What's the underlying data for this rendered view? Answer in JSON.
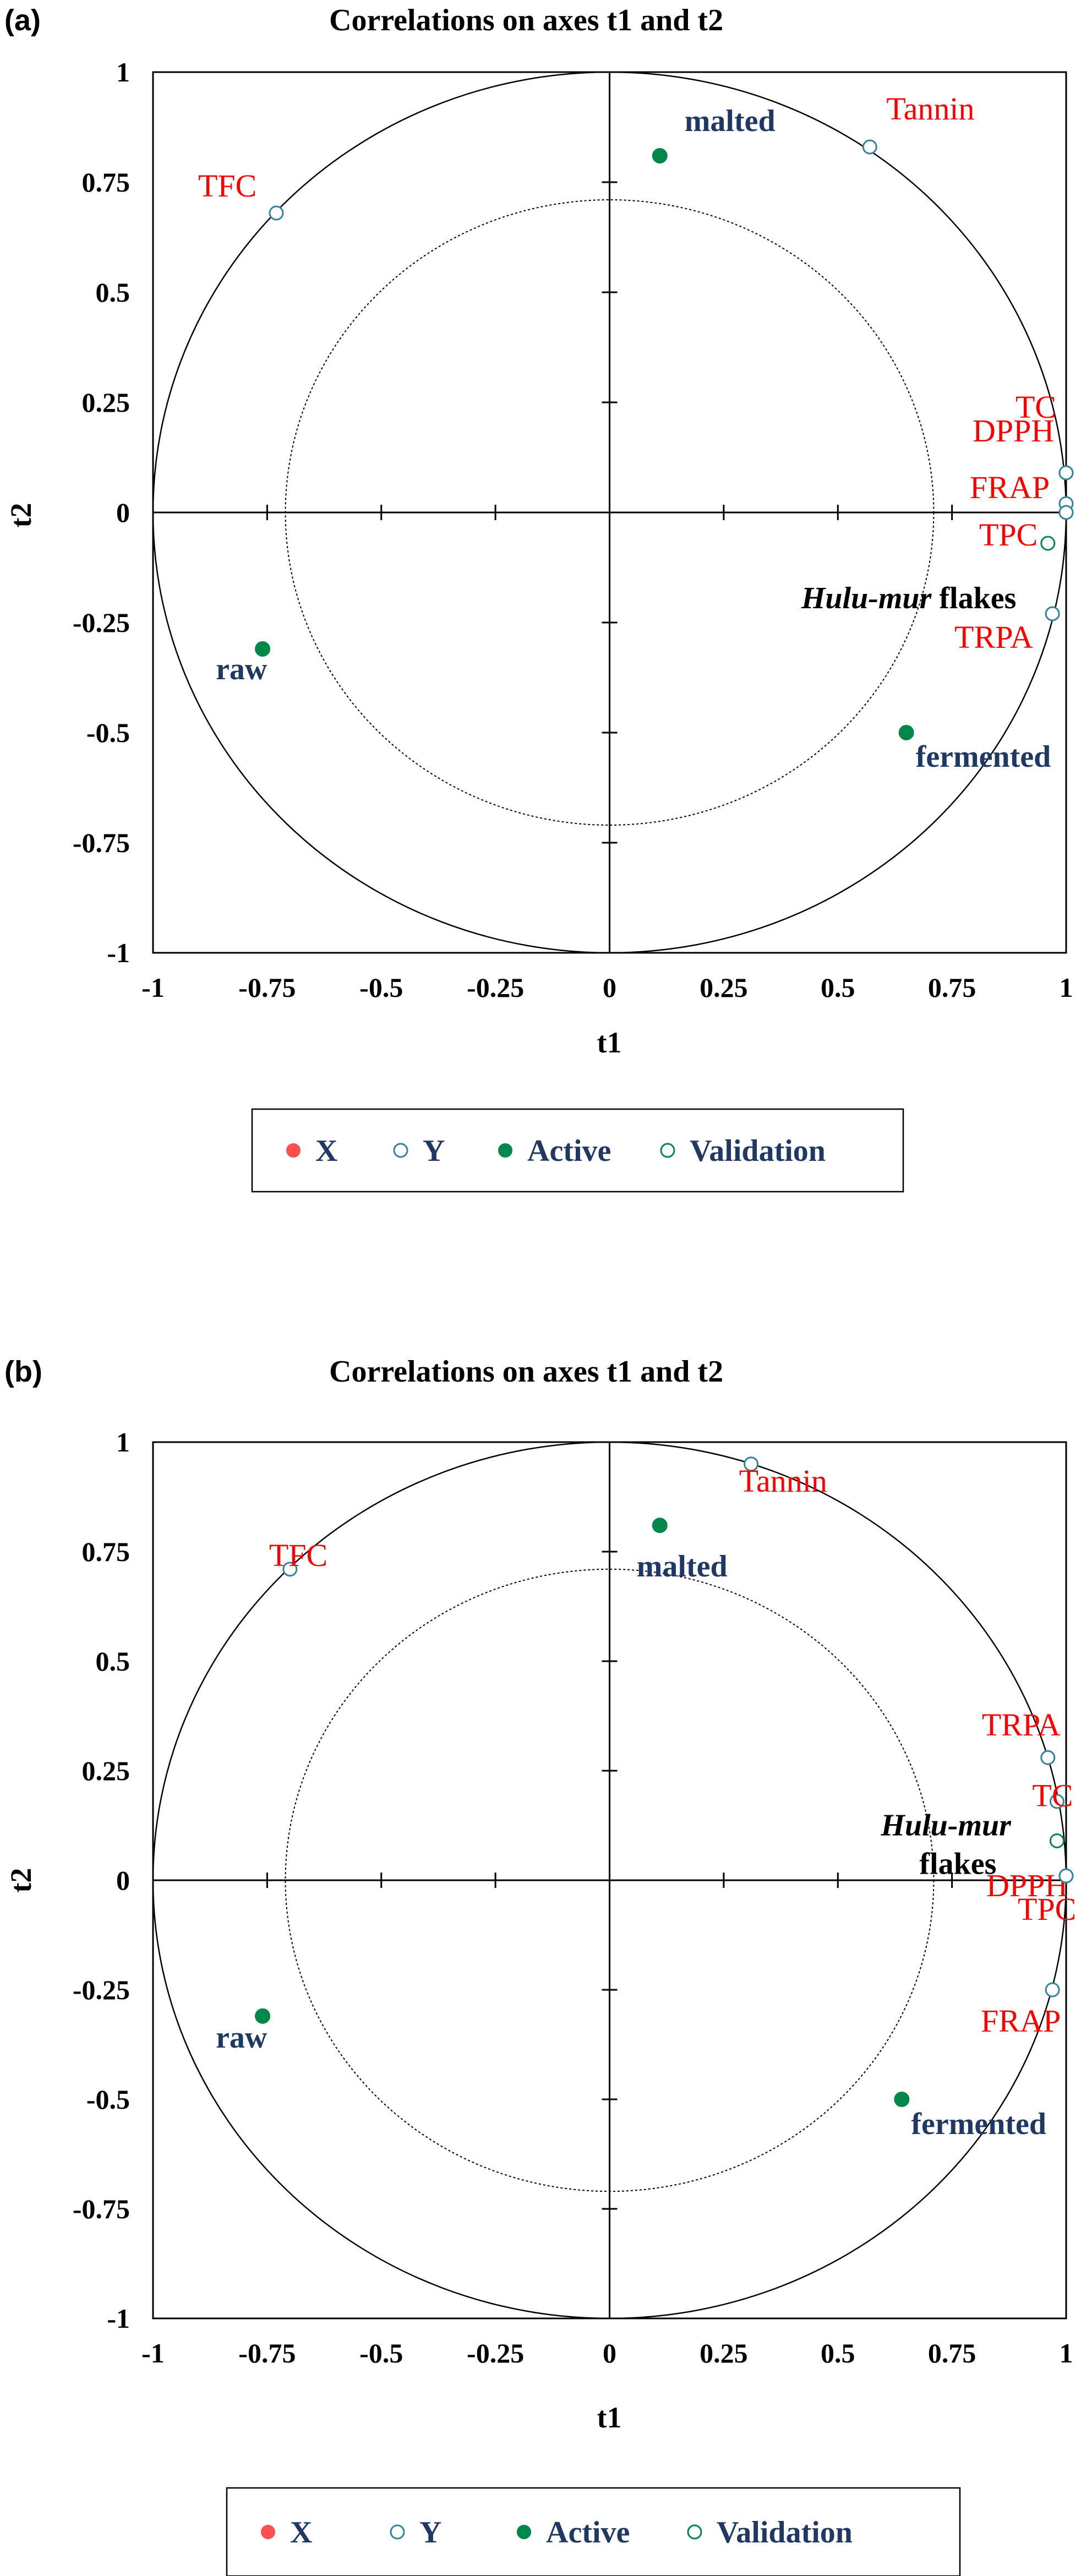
{
  "colors": {
    "variable_label": "#ff0000",
    "observation_label": "#1f3864",
    "validation_label": "#000000",
    "y_marker_stroke": "#31849b",
    "active_marker": "#00884a",
    "validation_marker": "#00884a",
    "x_marker": "#ff5050"
  },
  "chart_data": [
    {
      "panel": "(a)",
      "type": "scatter",
      "title": "Correlations on axes t1 and t2",
      "xlabel": "t1",
      "ylabel": "t2",
      "xlim": [
        -1,
        1
      ],
      "ylim": [
        -1,
        1
      ],
      "x_ticks": [
        "-1",
        "-0.75",
        "-0.5",
        "-0.25",
        "0",
        "0.25",
        "0.5",
        "0.75",
        "1"
      ],
      "y_ticks": [
        "1",
        "0.75",
        "0.5",
        "0.25",
        "0",
        "-0.25",
        "-0.5",
        "-0.75",
        "-1"
      ],
      "circles": [
        1,
        0.71
      ],
      "legend": [
        "X",
        "Y",
        "Active",
        "Validation"
      ],
      "legend_position": "bottom",
      "series": [
        {
          "name": "Y",
          "marker": "open",
          "points": [
            {
              "label": "Tannin",
              "x": 0.57,
              "y": 0.83
            },
            {
              "label": "TFC",
              "x": -0.73,
              "y": 0.68
            },
            {
              "label": "TC",
              "x": 1.0,
              "y": 0.09
            },
            {
              "label": "DPPH",
              "x": 1.0,
              "y": 0.09
            },
            {
              "label": "FRAP",
              "x": 1.0,
              "y": 0.02
            },
            {
              "label": "TPC",
              "x": 1.0,
              "y": 0.0
            },
            {
              "label": "TRPA",
              "x": 0.97,
              "y": -0.23
            }
          ]
        },
        {
          "name": "Active",
          "marker": "filled",
          "points": [
            {
              "label": "malted",
              "x": 0.11,
              "y": 0.81
            },
            {
              "label": "raw",
              "x": -0.76,
              "y": -0.31
            },
            {
              "label": "fermented",
              "x": 0.65,
              "y": -0.5
            }
          ]
        },
        {
          "name": "Validation",
          "marker": "open-green",
          "points": [
            {
              "label": "Hulu-mur flakes",
              "x": 0.96,
              "y": -0.07
            }
          ]
        }
      ]
    },
    {
      "panel": "(b)",
      "type": "scatter",
      "title": "Correlations on axes t1 and t2",
      "xlabel": "t1",
      "ylabel": "t2",
      "xlim": [
        -1,
        1
      ],
      "ylim": [
        -1,
        1
      ],
      "x_ticks": [
        "-1",
        "-0.75",
        "-0.5",
        "-0.25",
        "0",
        "0.25",
        "0.5",
        "0.75",
        "1"
      ],
      "y_ticks": [
        "1",
        "0.75",
        "0.5",
        "0.25",
        "0",
        "-0.25",
        "-0.5",
        "-0.75",
        "-1"
      ],
      "circles": [
        1,
        0.71
      ],
      "legend": [
        "X",
        "Y",
        "Active",
        "Validation"
      ],
      "legend_position": "bottom",
      "series": [
        {
          "name": "Y",
          "marker": "open",
          "points": [
            {
              "label": "Tannin",
              "x": 0.31,
              "y": 0.95
            },
            {
              "label": "TFC",
              "x": -0.7,
              "y": 0.71
            },
            {
              "label": "TRPA",
              "x": 0.96,
              "y": 0.28
            },
            {
              "label": "TC",
              "x": 0.98,
              "y": 0.18
            },
            {
              "label": "DPPH",
              "x": 1.0,
              "y": 0.01
            },
            {
              "label": "TPC",
              "x": 1.0,
              "y": 0.01
            },
            {
              "label": "FRAP",
              "x": 0.97,
              "y": -0.25
            }
          ]
        },
        {
          "name": "Active",
          "marker": "filled",
          "points": [
            {
              "label": "malted",
              "x": 0.11,
              "y": 0.81
            },
            {
              "label": "raw",
              "x": -0.76,
              "y": -0.31
            },
            {
              "label": "fermented",
              "x": 0.64,
              "y": -0.5
            }
          ]
        },
        {
          "name": "Validation",
          "marker": "open-green",
          "points": [
            {
              "label": "Hulu-mur flakes",
              "x": 0.98,
              "y": 0.09
            }
          ]
        }
      ]
    }
  ]
}
